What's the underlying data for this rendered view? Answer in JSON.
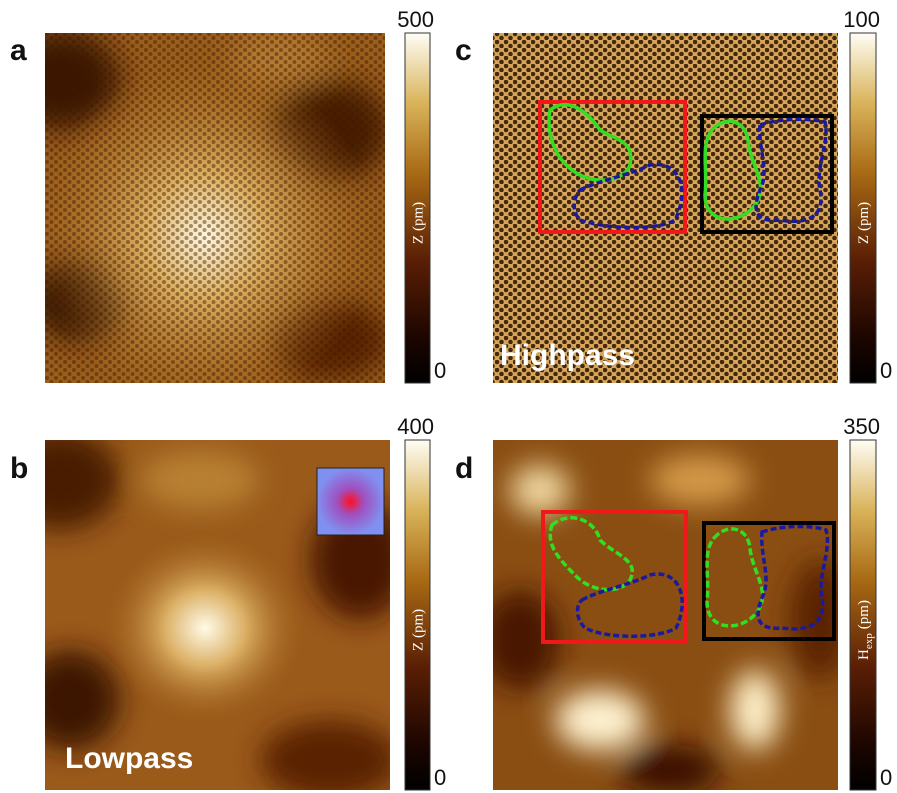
{
  "panels": [
    {
      "label": "a",
      "colorbar": {
        "max": 500,
        "min": 0,
        "title": "Z",
        "unit": "(pm)"
      }
    },
    {
      "label": "c",
      "caption": "Highpass",
      "colorbar": {
        "max": 100,
        "min": 0,
        "title": "Z",
        "unit": "(pm)"
      }
    },
    {
      "label": "b",
      "caption": "Lowpass",
      "colorbar": {
        "max": 400,
        "min": 0,
        "title": "Z",
        "unit": "(pm)"
      }
    },
    {
      "label": "d",
      "colorbar": {
        "max": 350,
        "min": 0,
        "title": "H",
        "sub": "exp",
        "unit": "(pm)"
      }
    }
  ]
}
